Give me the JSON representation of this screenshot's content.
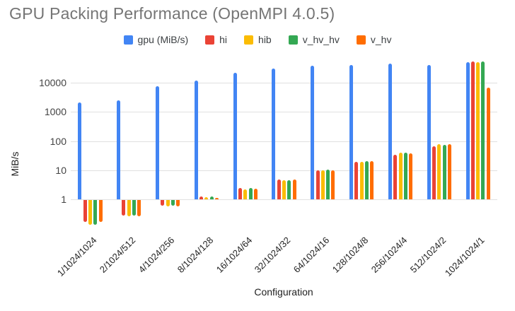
{
  "title": "GPU Packing Performance (OpenMPI 4.0.5)",
  "axes": {
    "y_title": "MiB/s",
    "x_title": "Configuration",
    "y_tick_labels": [
      "1",
      "10",
      "100",
      "1000",
      "10000"
    ]
  },
  "chart_data": {
    "type": "bar",
    "title": "GPU Packing Performance (OpenMPI 4.0.5)",
    "xlabel": "Configuration",
    "ylabel": "MiB/s",
    "y_scale": "log",
    "y_ticks": [
      1,
      10,
      100,
      1000,
      10000
    ],
    "ylim": [
      0.1,
      100000
    ],
    "grid": true,
    "legend_position": "top",
    "baseline": 1,
    "categories": [
      "1/1024/1024",
      "2/1024/512",
      "4/1024/256",
      "8/1024/128",
      "16/1024/64",
      "32/1024/32",
      "64/1024/16",
      "128/1024/8",
      "256/1024/4",
      "512/1024/2",
      "1024/1024/1"
    ],
    "series": [
      {
        "name": "gpu (MiB/s)",
        "color": "#4285F4",
        "values": [
          2100,
          2450,
          7800,
          11800,
          21700,
          31000,
          38000,
          42000,
          46000,
          40000,
          52000
        ]
      },
      {
        "name": "hi",
        "color": "#EA4335",
        "values": [
          0.18,
          0.3,
          0.65,
          1.27,
          2.4,
          4.8,
          9.8,
          19,
          33,
          67,
          55000
        ]
      },
      {
        "name": "hib",
        "color": "#FBBC04",
        "values": [
          0.14,
          0.28,
          0.62,
          1.18,
          2.2,
          4.5,
          10,
          19.5,
          40,
          78,
          52000
        ]
      },
      {
        "name": "v_hv_hv",
        "color": "#34A853",
        "values": [
          0.14,
          0.3,
          0.65,
          1.25,
          2.5,
          4.6,
          10.2,
          20,
          39,
          76,
          55000
        ]
      },
      {
        "name": "v_hv",
        "color": "#FF6D01",
        "values": [
          0.18,
          0.28,
          0.62,
          1.15,
          2.3,
          4.8,
          10,
          20.5,
          38,
          77,
          7000
        ]
      }
    ]
  }
}
